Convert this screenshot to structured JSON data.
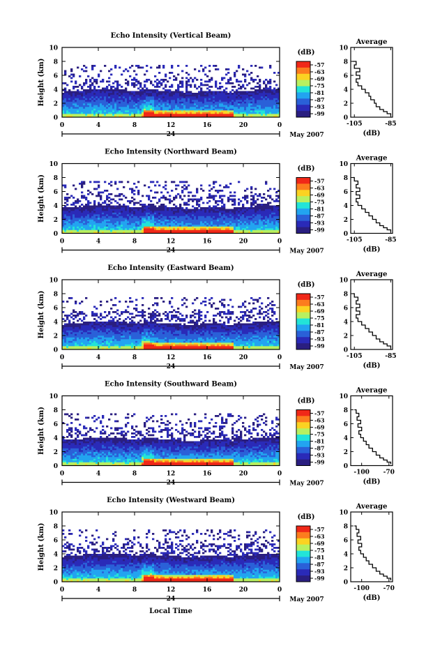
{
  "figure": {
    "date_label": "May 2007",
    "xlabel": "Local Time",
    "ylabel": "Height (km)",
    "colorbar_unit": "(dB)",
    "colorbar_ticks": [
      "-57",
      "-63",
      "-69",
      "-75",
      "-81",
      "-87",
      "-93",
      "-99"
    ],
    "colorbar_colors": [
      "#f02818",
      "#fc7c1e",
      "#fbd222",
      "#b8f060",
      "#22e4d8",
      "#22a4f0",
      "#2a60d8",
      "#2a2ab8",
      "#2a1e80"
    ],
    "avg_title": "Average",
    "avg_xlabel": "(dB)",
    "day_label": "24"
  },
  "chart_data": [
    {
      "type": "heatmap",
      "title": "Echo Intensity (Vertical Beam)",
      "xlabel": "Local Time",
      "ylabel": "Height (km)",
      "x_ticks": [
        "0",
        "4",
        "8",
        "12",
        "16",
        "20",
        "0"
      ],
      "xlim": [
        0,
        24
      ],
      "y_ticks": [
        "0",
        "2",
        "4",
        "6",
        "8",
        "10"
      ],
      "ylim": [
        0,
        10
      ],
      "zlim": [
        -99,
        -57
      ],
      "z_unit": "dB",
      "profile": {
        "type": "line",
        "title": "Average",
        "xlabel": "(dB)",
        "x_ticks": [
          "-105",
          "-85"
        ],
        "xlim": [
          -107,
          -84
        ],
        "height": [
          0.2,
          0.5,
          0.8,
          1.1,
          1.5,
          2.0,
          2.5,
          3.0,
          3.5,
          4.0,
          4.5,
          5.0,
          5.5,
          6.0,
          6.5,
          7.0,
          7.5,
          8.0
        ],
        "db": [
          -85,
          -87,
          -89,
          -91,
          -93,
          -94,
          -96,
          -97,
          -99,
          -101,
          -103,
          -104,
          -102,
          -104,
          -102,
          -105,
          -104,
          -106
        ]
      }
    },
    {
      "type": "heatmap",
      "title": "Echo Intensity (Northward Beam)",
      "xlabel": "Local Time",
      "ylabel": "Height (km)",
      "x_ticks": [
        "0",
        "4",
        "8",
        "12",
        "16",
        "20",
        "0"
      ],
      "xlim": [
        0,
        24
      ],
      "y_ticks": [
        "0",
        "2",
        "4",
        "6",
        "8",
        "10"
      ],
      "ylim": [
        0,
        10
      ],
      "zlim": [
        -99,
        -57
      ],
      "z_unit": "dB",
      "profile": {
        "type": "line",
        "title": "Average",
        "xlabel": "(dB)",
        "x_ticks": [
          "-105",
          "-85"
        ],
        "xlim": [
          -107,
          -84
        ],
        "height": [
          0.2,
          0.5,
          0.8,
          1.1,
          1.5,
          2.0,
          2.5,
          3.0,
          3.5,
          4.0,
          4.5,
          5.0,
          5.5,
          6.0,
          6.5,
          7.0,
          7.5,
          8.0
        ],
        "db": [
          -85,
          -87,
          -89,
          -91,
          -93,
          -95,
          -97,
          -99,
          -101,
          -103,
          -104,
          -102,
          -104,
          -102,
          -104,
          -103,
          -105,
          -106
        ]
      }
    },
    {
      "type": "heatmap",
      "title": "Echo Intensity (Eastward Beam)",
      "xlabel": "Local Time",
      "ylabel": "Height (km)",
      "x_ticks": [
        "0",
        "4",
        "8",
        "12",
        "16",
        "20",
        "0"
      ],
      "xlim": [
        0,
        24
      ],
      "y_ticks": [
        "0",
        "2",
        "4",
        "6",
        "8",
        "10"
      ],
      "ylim": [
        0,
        10
      ],
      "zlim": [
        -99,
        -57
      ],
      "z_unit": "dB",
      "profile": {
        "type": "line",
        "title": "Average",
        "xlabel": "(dB)",
        "x_ticks": [
          "-105",
          "-85"
        ],
        "xlim": [
          -107,
          -84
        ],
        "height": [
          0.2,
          0.5,
          0.8,
          1.1,
          1.5,
          2.0,
          2.5,
          3.0,
          3.5,
          4.0,
          4.5,
          5.0,
          5.5,
          6.0,
          6.5,
          7.0,
          7.5,
          8.0
        ],
        "db": [
          -85,
          -87,
          -89,
          -91,
          -93,
          -95,
          -97,
          -99,
          -101,
          -103,
          -104,
          -102,
          -104,
          -102,
          -104,
          -103,
          -105,
          -106
        ]
      }
    },
    {
      "type": "heatmap",
      "title": "Echo Intensity (Southward Beam)",
      "xlabel": "Local Time",
      "ylabel": "Height (km)",
      "x_ticks": [
        "0",
        "4",
        "8",
        "12",
        "16",
        "20",
        "0"
      ],
      "xlim": [
        0,
        24
      ],
      "y_ticks": [
        "0",
        "2",
        "4",
        "6",
        "8",
        "10"
      ],
      "ylim": [
        0,
        10
      ],
      "zlim": [
        -99,
        -57
      ],
      "z_unit": "dB",
      "profile": {
        "type": "line",
        "title": "Average",
        "xlabel": "(dB)",
        "x_ticks": [
          "-100",
          "-70"
        ],
        "xlim": [
          -112,
          -66
        ],
        "height": [
          0.2,
          0.5,
          0.8,
          1.1,
          1.5,
          2.0,
          2.5,
          3.0,
          3.5,
          4.0,
          4.5,
          5.0,
          5.5,
          6.0,
          6.5,
          7.0,
          7.5,
          8.0
        ],
        "db": [
          -68,
          -72,
          -76,
          -80,
          -84,
          -88,
          -92,
          -95,
          -98,
          -101,
          -103,
          -100,
          -104,
          -101,
          -105,
          -103,
          -106,
          -108
        ]
      }
    },
    {
      "type": "heatmap",
      "title": "Echo Intensity (Westward Beam)",
      "xlabel": "Local Time",
      "ylabel": "Height (km)",
      "x_ticks": [
        "0",
        "4",
        "8",
        "12",
        "16",
        "20",
        "0"
      ],
      "xlim": [
        0,
        24
      ],
      "y_ticks": [
        "0",
        "2",
        "4",
        "6",
        "8",
        "10"
      ],
      "ylim": [
        0,
        10
      ],
      "zlim": [
        -99,
        -57
      ],
      "z_unit": "dB",
      "profile": {
        "type": "line",
        "title": "Average",
        "xlabel": "(dB)",
        "x_ticks": [
          "-100",
          "-70"
        ],
        "xlim": [
          -112,
          -66
        ],
        "height": [
          0.2,
          0.5,
          0.8,
          1.1,
          1.5,
          2.0,
          2.5,
          3.0,
          3.5,
          4.0,
          4.5,
          5.0,
          5.5,
          6.0,
          6.5,
          7.0,
          7.5,
          8.0
        ],
        "db": [
          -68,
          -72,
          -76,
          -80,
          -84,
          -88,
          -92,
          -95,
          -98,
          -101,
          -103,
          -100,
          -104,
          -101,
          -105,
          -103,
          -106,
          -108
        ]
      }
    }
  ]
}
